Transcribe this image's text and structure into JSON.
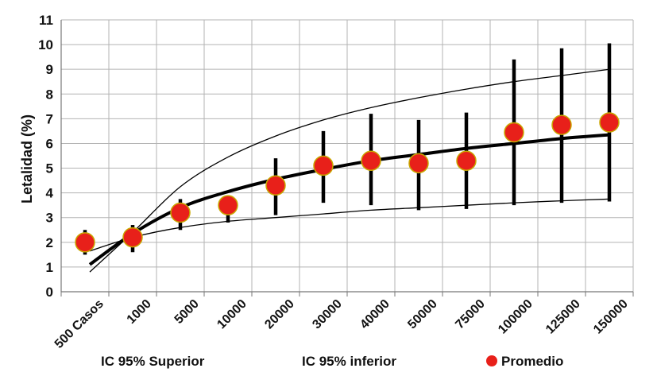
{
  "chart_data": {
    "type": "scatter",
    "ylabel": "Letalidad (%)",
    "xlabel": "",
    "ylim": [
      0,
      11
    ],
    "y_ticks": [
      0,
      1,
      2,
      3,
      4,
      5,
      6,
      7,
      8,
      9,
      10,
      11
    ],
    "grid": true,
    "categories": [
      "500 Casos",
      "1000",
      "5000",
      "10000",
      "20000",
      "30000",
      "40000",
      "50000",
      "75000",
      "100000",
      "125000",
      "150000"
    ],
    "series": [
      {
        "name": "Promedio",
        "kind": "points_with_error_bars",
        "color": "#e8201a",
        "edge_color": "#c9a800",
        "values": [
          2.0,
          2.2,
          3.2,
          3.5,
          4.3,
          5.1,
          5.3,
          5.2,
          5.3,
          6.45,
          6.75,
          6.85
        ],
        "error_low": [
          1.5,
          1.6,
          2.5,
          2.8,
          3.1,
          3.6,
          3.5,
          3.3,
          3.35,
          3.5,
          3.6,
          3.65
        ],
        "error_high": [
          2.5,
          2.7,
          3.75,
          3.7,
          5.4,
          6.5,
          7.2,
          6.95,
          7.25,
          9.4,
          9.85,
          10.05
        ]
      },
      {
        "name": "IC 95% Superior",
        "kind": "line",
        "color": "#000000",
        "x_pos": [
          0.1,
          1,
          2,
          3,
          4,
          5,
          6,
          7,
          8,
          9,
          10,
          11
        ],
        "values": [
          0.8,
          2.4,
          4.25,
          5.45,
          6.3,
          6.95,
          7.45,
          7.85,
          8.2,
          8.5,
          8.75,
          9.0
        ]
      },
      {
        "name": "IC 95% inferior",
        "kind": "line",
        "color": "#000000",
        "x_pos": [
          0.1,
          1,
          2,
          3,
          4,
          5,
          6,
          7,
          8,
          9,
          10,
          11
        ],
        "values": [
          1.65,
          2.2,
          2.6,
          2.85,
          3.0,
          3.15,
          3.3,
          3.4,
          3.5,
          3.6,
          3.68,
          3.75
        ]
      },
      {
        "name": "",
        "kind": "trend",
        "color": "#000000",
        "x_pos": [
          0.1,
          1,
          2,
          3,
          4,
          5,
          6,
          7,
          8,
          9,
          10,
          11
        ],
        "values": [
          1.1,
          2.35,
          3.4,
          4.05,
          4.55,
          4.95,
          5.3,
          5.55,
          5.8,
          6.0,
          6.2,
          6.35
        ]
      }
    ],
    "legend": {
      "placement": "bottom",
      "entries": [
        {
          "label": "IC 95% Superior",
          "marker": "none"
        },
        {
          "label": "IC 95% inferior",
          "marker": "none"
        },
        {
          "label": "Promedio",
          "marker": "circle",
          "color": "#e8201a"
        }
      ]
    }
  }
}
